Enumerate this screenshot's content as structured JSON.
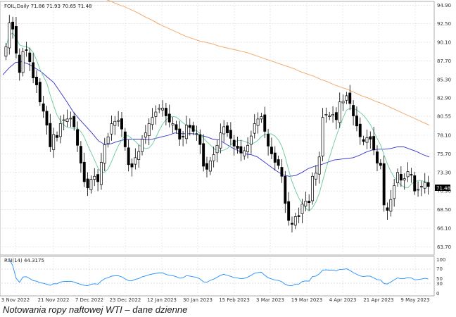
{
  "caption": "Notowania ropy naftowej WTI – dane dzienne",
  "chart_data": {
    "type": "candlestick",
    "header": "FOIL,Daily  71.86 71.93 70.65 71.48",
    "last_price_label": "71.48",
    "y_ticks": [
      "94.90",
      "92.50",
      "90.10",
      "87.70",
      "85.30",
      "82.90",
      "80.55",
      "78.10",
      "75.70",
      "73.30",
      "70.90",
      "68.50",
      "66.10",
      "63.70"
    ],
    "ylim": [
      63.0,
      95.2
    ],
    "x_ticks": [
      "3 Nov 2022",
      "21 Nov 2022",
      "7 Dec 2022",
      "23 Dec 2022",
      "12 Jan 2023",
      "30 Jan 2023",
      "15 Feb 2023",
      "3 Mar 2023",
      "19 Mar 2023",
      "4 Apr 2023",
      "21 Apr 2023",
      "9 May 2023"
    ],
    "colors": {
      "bull": "#ffffff",
      "bear": "#000000",
      "ma_long": "#f4a460",
      "ma_mid": "#3333cc",
      "ma_short": "#66cc99",
      "rsi": "#1e90ff",
      "grid": "#d9d9d9"
    },
    "close": [
      89.5,
      92.6,
      91.8,
      88.7,
      86.2,
      88.9,
      89.1,
      87.6,
      85.5,
      84.6,
      82.4,
      81.2,
      79.4,
      76.6,
      78.2,
      77.8,
      79.6,
      80.1,
      80.2,
      80.3,
      79.2,
      76.8,
      74.5,
      72.1,
      71.3,
      72.4,
      72.8,
      72.1,
      74.6,
      76.9,
      77.9,
      79.6,
      79.9,
      80.0,
      78.9,
      76.6,
      74.3,
      74.0,
      75.2,
      76.0,
      77.6,
      78.4,
      79.6,
      80.4,
      81.1,
      81.6,
      81.6,
      80.6,
      79.8,
      79.6,
      78.8,
      77.6,
      77.9,
      79.4,
      79.1,
      78.6,
      78.3,
      76.9,
      74.1,
      73.7,
      74.8,
      75.6,
      76.8,
      78.4,
      79.2,
      78.4,
      77.7,
      76.7,
      76.4,
      75.8,
      76.1,
      76.8,
      78.0,
      79.6,
      80.2,
      80.5,
      78.6,
      76.7,
      75.7,
      74.6,
      74.2,
      72.8,
      69.3,
      67.1,
      66.6,
      67.6,
      67.6,
      69.2,
      69.6,
      69.4,
      72.8,
      73.2,
      75.3,
      80.4,
      80.8,
      80.6,
      80.8,
      80.1,
      82.4,
      82.5,
      83.2,
      82.2,
      80.6,
      79.3,
      77.9,
      77.3,
      77.8,
      77.6,
      76.2,
      74.5,
      74.2,
      69.1,
      68.4,
      69.8,
      71.6,
      73.3,
      72.3,
      72.5,
      73.4,
      73.0,
      70.9,
      71.1,
      71.5,
      72.0,
      71.48
    ],
    "ma_long": [
      95.7,
      95.4,
      95.0,
      94.7,
      94.3,
      93.9,
      93.4,
      93.0,
      92.5,
      92.1,
      91.7,
      91.3,
      90.9,
      90.6,
      90.3,
      90.1,
      89.9,
      89.6,
      89.4,
      89.2,
      89.0,
      88.8,
      88.5,
      88.2,
      87.9,
      87.6,
      87.3,
      87.0,
      86.7,
      86.3,
      86.0,
      85.7,
      85.3,
      85.0,
      84.6,
      84.3,
      84.0,
      83.6,
      83.2,
      82.9,
      82.5,
      82.2,
      81.8,
      81.4,
      81.0,
      80.6,
      80.2,
      79.8,
      79.4
    ],
    "ma_mid": [
      85.9,
      86.8,
      87.5,
      87.6,
      87.3,
      86.8,
      86.3,
      85.6,
      84.9,
      83.7,
      82.5,
      81.2,
      80.2,
      79.3,
      78.4,
      77.4,
      76.9,
      77.0,
      77.3,
      77.5,
      77.6,
      77.6,
      77.6,
      77.5,
      77.7,
      77.9,
      78.1,
      78.4,
      78.3,
      78.3,
      78.3,
      78.1,
      77.9,
      77.6,
      77.5,
      77.0,
      76.5,
      76.1,
      75.7,
      75.6,
      75.3,
      74.7,
      74.1,
      73.5,
      73.0,
      72.8,
      72.9,
      73.3,
      73.8,
      74.1,
      74.3,
      74.6,
      74.9,
      75.0,
      75.1,
      75.2,
      75.5,
      75.9,
      76.2,
      76.3,
      76.3,
      76.4,
      76.6,
      76.6,
      76.3,
      76.0,
      75.6,
      75.3
    ]
  }
}
